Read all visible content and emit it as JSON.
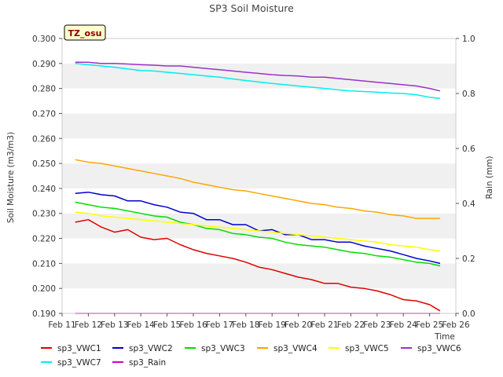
{
  "chart_data": {
    "type": "line",
    "title": "SP3 Soil Moisture",
    "site_tag": "TZ_osu",
    "xlabel": "Time",
    "ylabel": "Soil Moisture (m3/m3)",
    "y2label": "Rain (mm)",
    "xlim": [
      11,
      26
    ],
    "ylim": [
      0.19,
      0.3
    ],
    "y2lim": [
      0.0,
      1.0
    ],
    "x_ticks": [
      11,
      12,
      13,
      14,
      15,
      16,
      17,
      18,
      19,
      20,
      21,
      22,
      23,
      24,
      25,
      26
    ],
    "x_tick_labels": [
      "Feb 11",
      "Feb 12",
      "Feb 13",
      "Feb 14",
      "Feb 15",
      "Feb 16",
      "Feb 17",
      "Feb 18",
      "Feb 19",
      "Feb 20",
      "Feb 21",
      "Feb 22",
      "Feb 23",
      "Feb 24",
      "Feb 25",
      "Feb 26"
    ],
    "y_ticks": [
      0.19,
      0.2,
      0.21,
      0.22,
      0.23,
      0.24,
      0.25,
      0.26,
      0.27,
      0.28,
      0.29,
      0.3
    ],
    "y_tick_labels": [
      "0.190",
      "0.200",
      "0.210",
      "0.220",
      "0.230",
      "0.240",
      "0.250",
      "0.260",
      "0.270",
      "0.280",
      "0.290",
      "0.300"
    ],
    "y2_ticks": [
      0.0,
      0.2,
      0.4,
      0.6,
      0.8,
      1.0
    ],
    "y2_tick_labels": [
      "0.0",
      "0.2",
      "0.4",
      "0.6",
      "0.8",
      "1.0"
    ],
    "grid": "horizontal alternating bands",
    "band_color": "#f0f0f0",
    "legend_position": "bottom",
    "x": [
      11.5,
      12.0,
      12.5,
      13.0,
      13.5,
      14.0,
      14.5,
      15.0,
      15.5,
      16.0,
      16.5,
      17.0,
      17.5,
      18.0,
      18.5,
      19.0,
      19.5,
      20.0,
      20.5,
      21.0,
      21.5,
      22.0,
      22.5,
      23.0,
      23.5,
      24.0,
      24.5,
      25.0,
      25.4
    ],
    "series": [
      {
        "name": "sp3_VWC1",
        "color": "#e00000",
        "axis": "left",
        "values": [
          0.2265,
          0.2275,
          0.2245,
          0.2225,
          0.2235,
          0.2205,
          0.2195,
          0.22,
          0.2175,
          0.2155,
          0.214,
          0.213,
          0.212,
          0.2105,
          0.2085,
          0.2075,
          0.206,
          0.2045,
          0.2035,
          0.202,
          0.202,
          0.2005,
          0.2,
          0.199,
          0.1975,
          0.1955,
          0.195,
          0.1935,
          0.191
        ]
      },
      {
        "name": "sp3_VWC2",
        "color": "#0000cc",
        "axis": "left",
        "values": [
          0.238,
          0.2385,
          0.2375,
          0.237,
          0.235,
          0.235,
          0.2335,
          0.2325,
          0.2305,
          0.23,
          0.2275,
          0.2275,
          0.2255,
          0.2255,
          0.223,
          0.2235,
          0.2215,
          0.2215,
          0.2195,
          0.2195,
          0.2185,
          0.2185,
          0.217,
          0.216,
          0.215,
          0.2135,
          0.212,
          0.211,
          0.21
        ]
      },
      {
        "name": "sp3_VWC3",
        "color": "#00dd00",
        "axis": "left",
        "values": [
          0.2345,
          0.2335,
          0.2325,
          0.232,
          0.231,
          0.23,
          0.229,
          0.2285,
          0.2265,
          0.2255,
          0.224,
          0.2235,
          0.222,
          0.2215,
          0.2205,
          0.22,
          0.2185,
          0.2175,
          0.217,
          0.2165,
          0.2155,
          0.2145,
          0.214,
          0.213,
          0.2125,
          0.2115,
          0.2105,
          0.21,
          0.209
        ]
      },
      {
        "name": "sp3_VWC4",
        "color": "#ffa500",
        "axis": "left",
        "values": [
          0.2515,
          0.2505,
          0.25,
          0.249,
          0.248,
          0.247,
          0.246,
          0.245,
          0.244,
          0.2425,
          0.2415,
          0.2405,
          0.2395,
          0.239,
          0.238,
          0.237,
          0.236,
          0.235,
          0.234,
          0.2335,
          0.2325,
          0.232,
          0.231,
          0.2305,
          0.2295,
          0.229,
          0.228,
          0.228,
          0.228
        ]
      },
      {
        "name": "sp3_VWC5",
        "color": "#ffff00",
        "axis": "left",
        "values": [
          0.2305,
          0.23,
          0.229,
          0.2285,
          0.228,
          0.2275,
          0.227,
          0.2265,
          0.226,
          0.2255,
          0.225,
          0.2245,
          0.224,
          0.2235,
          0.223,
          0.2225,
          0.222,
          0.2215,
          0.221,
          0.2205,
          0.22,
          0.2195,
          0.219,
          0.2185,
          0.2175,
          0.217,
          0.2165,
          0.2155,
          0.215
        ]
      },
      {
        "name": "sp3_VWC6",
        "color": "#9932cc",
        "axis": "left",
        "values": [
          0.2905,
          0.2905,
          0.29,
          0.29,
          0.2898,
          0.2895,
          0.2893,
          0.289,
          0.289,
          0.2885,
          0.288,
          0.2875,
          0.287,
          0.2865,
          0.286,
          0.2855,
          0.2852,
          0.285,
          0.2845,
          0.2845,
          0.284,
          0.2835,
          0.283,
          0.2825,
          0.282,
          0.2815,
          0.281,
          0.28,
          0.279
        ]
      },
      {
        "name": "sp3_VWC7",
        "color": "#00eeee",
        "axis": "left",
        "values": [
          0.29,
          0.2895,
          0.289,
          0.2885,
          0.2878,
          0.2872,
          0.287,
          0.2865,
          0.286,
          0.2855,
          0.285,
          0.2845,
          0.2838,
          0.2832,
          0.2826,
          0.282,
          0.2815,
          0.281,
          0.2805,
          0.28,
          0.2795,
          0.279,
          0.2788,
          0.2785,
          0.2782,
          0.278,
          0.2775,
          0.2765,
          0.276
        ]
      },
      {
        "name": "sp3_Rain",
        "color": "#cc00cc",
        "axis": "right",
        "values": [
          0,
          0,
          0,
          0,
          0,
          0,
          0,
          0,
          0,
          0,
          0,
          0,
          0,
          0,
          0,
          0,
          0,
          0,
          0,
          0,
          0,
          0,
          0,
          0,
          0,
          0,
          0,
          0,
          0
        ]
      }
    ]
  }
}
